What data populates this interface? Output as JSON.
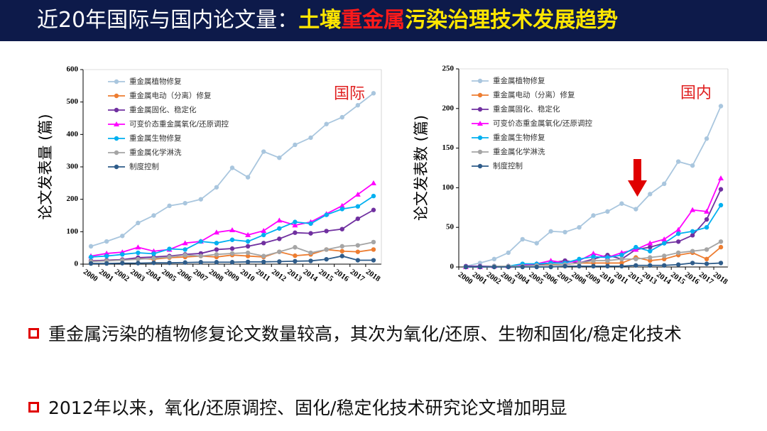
{
  "header": {
    "title_parts": [
      "近20年国际与国内论文量：",
      "土壤",
      "重金属",
      "污染治理技术发展趋势"
    ]
  },
  "bullets": [
    "重金属污染的植物修复论文数量较高，其次为氧化/还原、生物和固化/稳定化技术",
    "2012年以来，氧化/还原调控、固化/稳定化技术研究论文增加明显"
  ],
  "chart_data": [
    {
      "type": "line",
      "annotation": "国际",
      "y_label": "论文发表量 (篇)",
      "legend": "upper left",
      "categories": [
        "2000",
        "2001",
        "2002",
        "2003",
        "2004",
        "2005",
        "2006",
        "2007",
        "2008",
        "2009",
        "2010",
        "2011",
        "2012",
        "2013",
        "2014",
        "2015",
        "2016",
        "2017",
        "2018"
      ],
      "ylim": [
        0,
        600
      ],
      "yticks": [
        0,
        100,
        200,
        300,
        400,
        500,
        600
      ],
      "series": [
        {
          "name": "重金属植物修复",
          "color": "#a9c6de",
          "marker": "circle",
          "values": [
            55,
            70,
            87,
            127,
            150,
            180,
            188,
            200,
            237,
            297,
            268,
            347,
            328,
            368,
            390,
            432,
            453,
            490,
            527
          ]
        },
        {
          "name": "重金属电动（分离）修复",
          "color": "#ed7d31",
          "marker": "circle",
          "values": [
            10,
            12,
            14,
            18,
            15,
            20,
            22,
            25,
            22,
            28,
            25,
            22,
            38,
            26,
            30,
            45,
            40,
            38,
            45
          ]
        },
        {
          "name": "重金属固化、稳定化",
          "color": "#7030a0",
          "marker": "circle",
          "values": [
            10,
            12,
            14,
            20,
            22,
            25,
            30,
            33,
            45,
            48,
            55,
            65,
            78,
            97,
            95,
            102,
            108,
            140,
            167
          ]
        },
        {
          "name": "可变价态重金属氧化/还原调控",
          "color": "#ff00ff",
          "marker": "triangle",
          "values": [
            25,
            33,
            37,
            52,
            40,
            45,
            65,
            70,
            98,
            105,
            90,
            103,
            135,
            120,
            130,
            155,
            180,
            215,
            250
          ]
        },
        {
          "name": "重金属生物修复",
          "color": "#00b0f0",
          "marker": "circle",
          "values": [
            22,
            25,
            30,
            35,
            32,
            47,
            45,
            70,
            65,
            75,
            70,
            90,
            110,
            130,
            125,
            152,
            170,
            178,
            210
          ]
        },
        {
          "name": "重金属化学淋洗",
          "color": "#a5a5a5",
          "marker": "circle",
          "values": [
            8,
            10,
            12,
            15,
            18,
            22,
            28,
            25,
            30,
            33,
            35,
            25,
            38,
            52,
            35,
            45,
            55,
            58,
            68
          ]
        },
        {
          "name": "制度控制",
          "color": "#2e5c8a",
          "marker": "circle",
          "values": [
            2,
            2,
            3,
            3,
            4,
            4,
            5,
            6,
            6,
            6,
            7,
            7,
            8,
            9,
            10,
            15,
            25,
            12,
            12
          ]
        }
      ]
    },
    {
      "type": "line",
      "annotation": "国内",
      "y_label": "论文发表数 (篇)",
      "legend": "upper left",
      "categories": [
        "2000",
        "2001",
        "2002",
        "2003",
        "2004",
        "2005",
        "2006",
        "2007",
        "2008",
        "2009",
        "2010",
        "2011",
        "2012",
        "2013",
        "2014",
        "2015",
        "2016",
        "2017",
        "2018"
      ],
      "ylim": [
        0,
        250
      ],
      "yticks": [
        0,
        50,
        100,
        150,
        200,
        250
      ],
      "series": [
        {
          "name": "重金属植物修复",
          "color": "#a9c6de",
          "marker": "circle",
          "values": [
            1,
            5,
            10,
            18,
            35,
            30,
            45,
            44,
            50,
            65,
            70,
            80,
            73,
            92,
            105,
            133,
            128,
            162,
            203
          ]
        },
        {
          "name": "重金属电动（分离）修复",
          "color": "#ed7d31",
          "marker": "circle",
          "values": [
            0,
            0,
            1,
            1,
            2,
            2,
            3,
            3,
            5,
            5,
            5,
            5,
            12,
            8,
            10,
            15,
            18,
            10,
            25
          ]
        },
        {
          "name": "重金属固化、稳定化",
          "color": "#7030a0",
          "marker": "circle",
          "values": [
            1,
            1,
            1,
            1,
            2,
            3,
            5,
            8,
            5,
            10,
            15,
            10,
            22,
            25,
            30,
            32,
            40,
            60,
            98
          ]
        },
        {
          "name": "可变价态重金属氧化/还原调控",
          "color": "#ff00ff",
          "marker": "triangle",
          "values": [
            0,
            0,
            1,
            1,
            3,
            4,
            8,
            5,
            8,
            17,
            12,
            18,
            22,
            30,
            35,
            47,
            72,
            70,
            112
          ]
        },
        {
          "name": "重金属生物修复",
          "color": "#00b0f0",
          "marker": "circle",
          "values": [
            0,
            0,
            1,
            1,
            4,
            4,
            5,
            5,
            10,
            13,
            12,
            15,
            25,
            20,
            30,
            42,
            45,
            50,
            78
          ]
        },
        {
          "name": "重金属化学淋洗",
          "color": "#a5a5a5",
          "marker": "circle",
          "values": [
            0,
            0,
            1,
            1,
            1,
            2,
            2,
            3,
            5,
            8,
            8,
            10,
            10,
            12,
            14,
            18,
            20,
            22,
            32
          ]
        },
        {
          "name": "制度控制",
          "color": "#2e5c8a",
          "marker": "circle",
          "values": [
            0,
            0,
            0,
            0,
            0,
            0,
            0,
            1,
            1,
            1,
            1,
            1,
            2,
            2,
            2,
            3,
            5,
            4,
            5
          ]
        }
      ]
    }
  ]
}
